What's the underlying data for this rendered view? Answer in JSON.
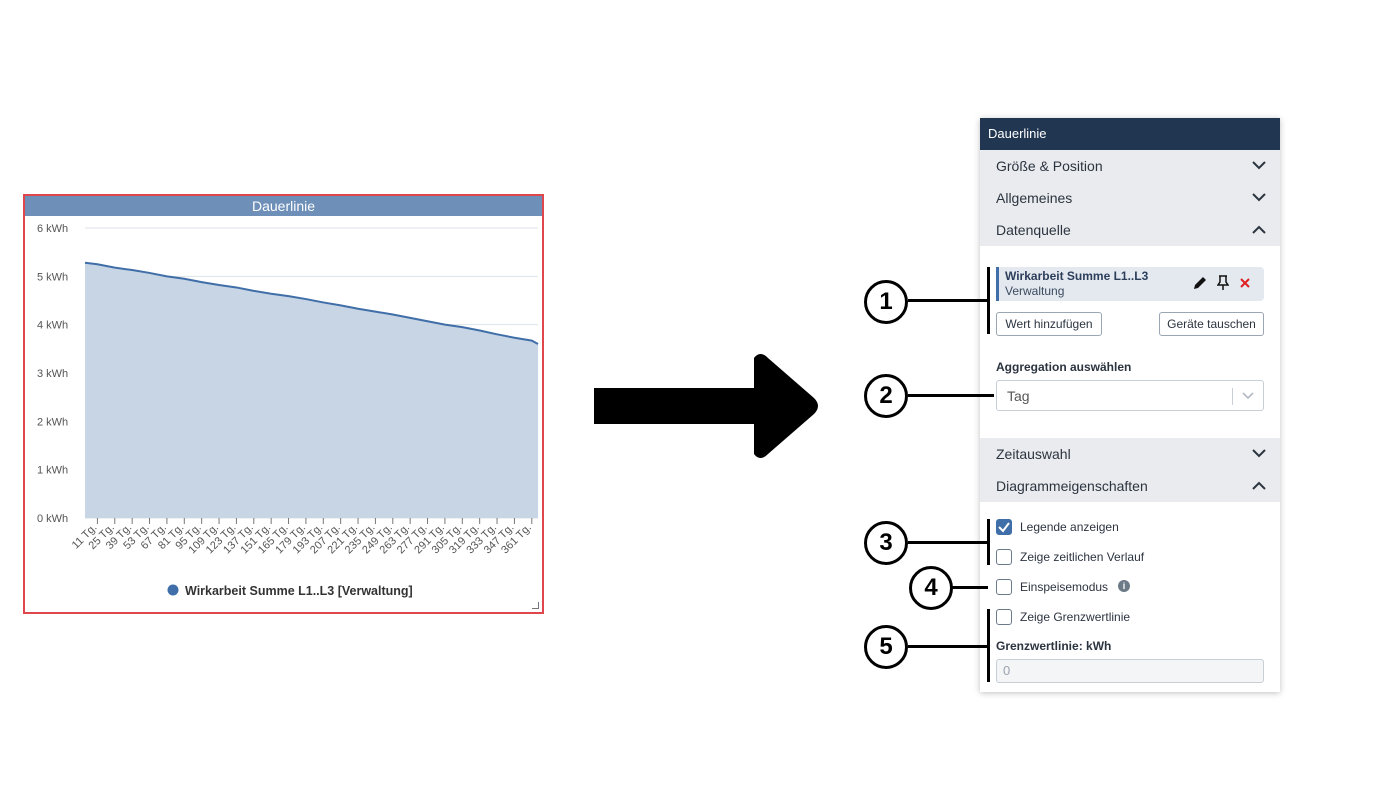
{
  "chart": {
    "title": "Dauerlinie",
    "legend": "Wirkarbeit Summe L1..L3 [Verwaltung]"
  },
  "chart_data": {
    "type": "area",
    "title": "Dauerlinie",
    "xlabel": "",
    "ylabel": "",
    "ylim": [
      0,
      6
    ],
    "y_unit": "kWh",
    "y_ticks": [
      "0 kWh",
      "1 kWh",
      "2 kWh",
      "3 kWh",
      "4 kWh",
      "5 kWh",
      "6 kWh"
    ],
    "x_ticks": [
      "11 Tg.",
      "25 Tg.",
      "39 Tg.",
      "53 Tg.",
      "67 Tg.",
      "81 Tg.",
      "95 Tg.",
      "109 Tg.",
      "123 Tg.",
      "137 Tg.",
      "151 Tg.",
      "165 Tg.",
      "179 Tg.",
      "193 Tg.",
      "207 Tg.",
      "221 Tg.",
      "235 Tg.",
      "249 Tg.",
      "263 Tg.",
      "277 Tg.",
      "291 Tg.",
      "305 Tg.",
      "319 Tg.",
      "333 Tg.",
      "347 Tg.",
      "361 Tg."
    ],
    "x_range": [
      1,
      366
    ],
    "grid": true,
    "legend_position": "bottom",
    "series": [
      {
        "name": "Wirkarbeit Summe L1..L3 [Verwaltung]",
        "color": "#3f6ea8",
        "fill": "#c8d5e4",
        "x": [
          1,
          11,
          25,
          39,
          53,
          67,
          81,
          95,
          109,
          123,
          137,
          151,
          165,
          179,
          193,
          207,
          221,
          235,
          249,
          263,
          277,
          291,
          305,
          319,
          333,
          347,
          361,
          366
        ],
        "values": [
          5.28,
          5.25,
          5.18,
          5.13,
          5.07,
          5.0,
          4.95,
          4.88,
          4.82,
          4.77,
          4.7,
          4.64,
          4.59,
          4.53,
          4.46,
          4.4,
          4.33,
          4.27,
          4.21,
          4.14,
          4.07,
          4.0,
          3.95,
          3.88,
          3.8,
          3.73,
          3.67,
          3.6
        ]
      }
    ]
  },
  "panel": {
    "title": "Dauerlinie",
    "sections": {
      "size_position": "Größe & Position",
      "general": "Allgemeines",
      "datasource": "Datenquelle",
      "time_selection": "Zeitauswahl",
      "diagram_properties": "Diagrammeigenschaften"
    },
    "datasource_item": {
      "name": "Wirkarbeit Summe L1..L3",
      "location": "Verwaltung"
    },
    "buttons": {
      "add_value": "Wert hinzufügen",
      "swap_devices": "Geräte tauschen"
    },
    "aggregation": {
      "label": "Aggregation auswählen",
      "value": "Tag"
    },
    "options": {
      "show_legend": "Legende anzeigen",
      "show_legend_checked": true,
      "show_time_history": "Zeige zeitlichen Verlauf",
      "show_time_history_checked": false,
      "feed_in_mode": "Einspeisemodus",
      "feed_in_mode_checked": false,
      "show_limit_line": "Zeige Grenzwertlinie",
      "show_limit_line_checked": false
    },
    "limit_line": {
      "label": "Grenzwertlinie: kWh",
      "placeholder": "0"
    }
  },
  "callouts": [
    "1",
    "2",
    "3",
    "4",
    "5"
  ],
  "colors": {
    "panel_header": "#213650",
    "accent": "#3f6ea8",
    "chart_border": "#e0474c",
    "chart_header": "#6d8fb8"
  }
}
